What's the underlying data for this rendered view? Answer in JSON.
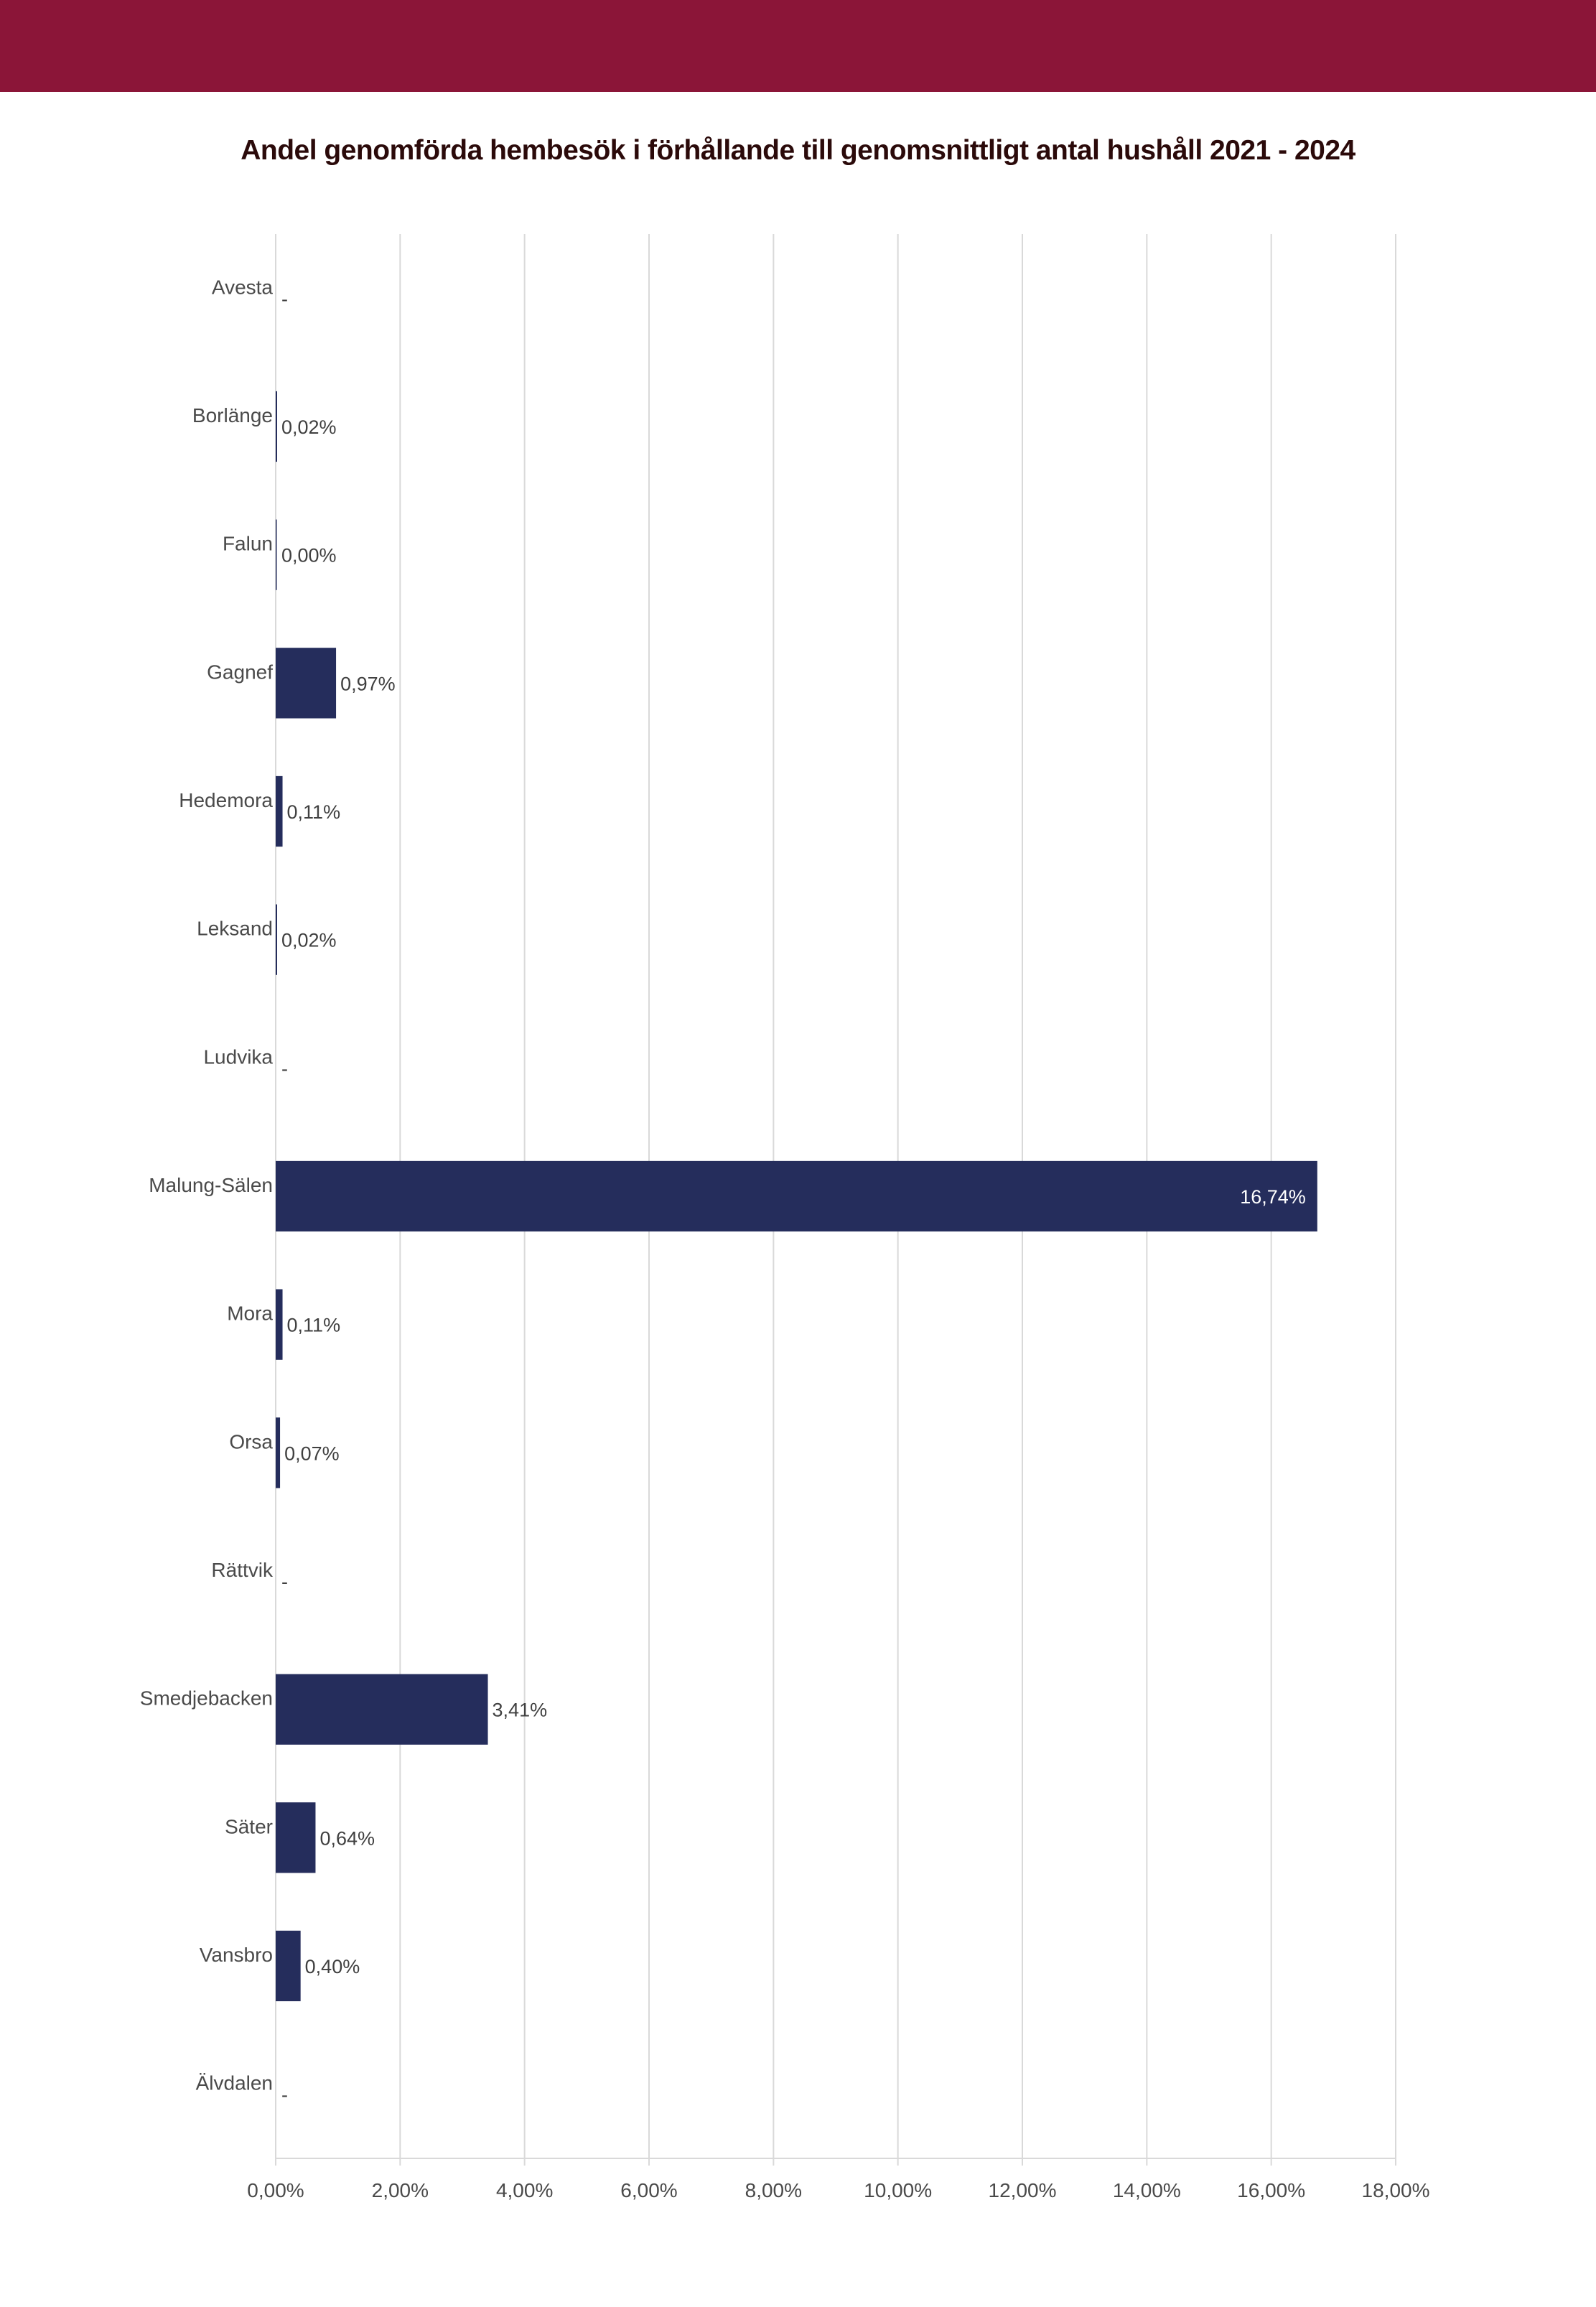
{
  "colors": {
    "top_band": "#8b1538",
    "bar": "#252d5c",
    "gridline": "#d9d9d9",
    "title_text": "#2b0a0a"
  },
  "chart_data": {
    "type": "bar",
    "orientation": "horizontal",
    "title": "Andel genomförda hembesök i förhållande till genomsnittligt antal hushåll 2021 - 2024",
    "categories": [
      "Avesta",
      "Borlänge",
      "Falun",
      "Gagnef",
      "Hedemora",
      "Leksand",
      "Ludvika",
      "Malung-Sälen",
      "Mora",
      "Orsa",
      "Rättvik",
      "Smedjebacken",
      "Säter",
      "Vansbro",
      "Älvdalen"
    ],
    "values": [
      0,
      0.02,
      0.0,
      0.97,
      0.11,
      0.02,
      0,
      16.74,
      0.11,
      0.07,
      0,
      3.41,
      0.64,
      0.4,
      0
    ],
    "data_labels": [
      "-",
      "0,02%",
      "0,00%",
      "0,97%",
      "0,11%",
      "0,02%",
      "-",
      "16,74%",
      "0,11%",
      "0,07%",
      "-",
      "3,41%",
      "0,64%",
      "0,40%",
      "-"
    ],
    "xlim": [
      0,
      18
    ],
    "x_ticks": [
      0,
      2,
      4,
      6,
      8,
      10,
      12,
      14,
      16,
      18
    ],
    "x_tick_labels": [
      "0,00%",
      "2,00%",
      "4,00%",
      "6,00%",
      "8,00%",
      "10,00%",
      "12,00%",
      "14,00%",
      "16,00%",
      "18,00%"
    ],
    "grid": true,
    "legend": "none"
  }
}
